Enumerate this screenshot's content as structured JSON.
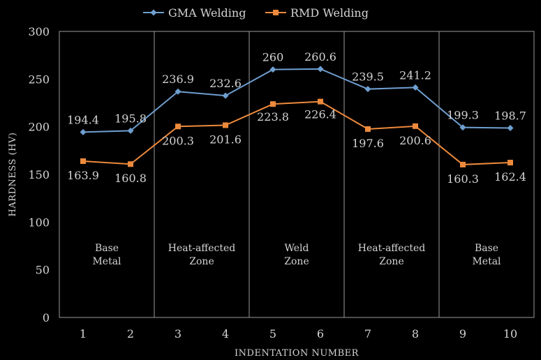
{
  "chart_data": {
    "type": "line",
    "title": "",
    "xlabel": "INDENTATION NUMBER",
    "ylabel": "HARDNESS (HV)",
    "x": [
      1,
      2,
      3,
      4,
      5,
      6,
      7,
      8,
      9,
      10
    ],
    "ylim": [
      0,
      300
    ],
    "yticks": [
      0,
      50,
      100,
      150,
      200,
      250,
      300
    ],
    "legend_position": "top",
    "series": [
      {
        "name": "GMA Welding",
        "color": "#6f9fd0",
        "marker": "diamond",
        "values": [
          194.4,
          195.8,
          236.9,
          232.6,
          260,
          260.6,
          239.5,
          241.2,
          199.3,
          198.7
        ],
        "labels": [
          "194.4",
          "195.8",
          "236.9",
          "232.6",
          "260",
          "260.6",
          "239.5",
          "241.2",
          "199.3",
          "198.7"
        ]
      },
      {
        "name": "RMD Welding",
        "color": "#ee8a3c",
        "marker": "square",
        "values": [
          163.9,
          160.8,
          200.3,
          201.6,
          223.8,
          226.4,
          197.6,
          200.6,
          160.3,
          162.4
        ],
        "labels": [
          "163.9",
          "160.8",
          "200.3",
          "201.6",
          "223.8",
          "226.4",
          "197.6",
          "200.6",
          "160.3",
          "162.4"
        ]
      }
    ],
    "zones": [
      {
        "lines": [
          "Base",
          "Metal"
        ],
        "center_x": 1.5
      },
      {
        "lines": [
          "Heat-affected",
          "Zone"
        ],
        "center_x": 3.5
      },
      {
        "lines": [
          "Weld",
          "Zone"
        ],
        "center_x": 5.5
      },
      {
        "lines": [
          "Heat-affected",
          "Zone"
        ],
        "center_x": 7.5
      },
      {
        "lines": [
          "Base",
          "Metal"
        ],
        "center_x": 9.5
      }
    ],
    "zone_dividers": [
      2.5,
      4.5,
      6.5,
      8.5
    ]
  }
}
